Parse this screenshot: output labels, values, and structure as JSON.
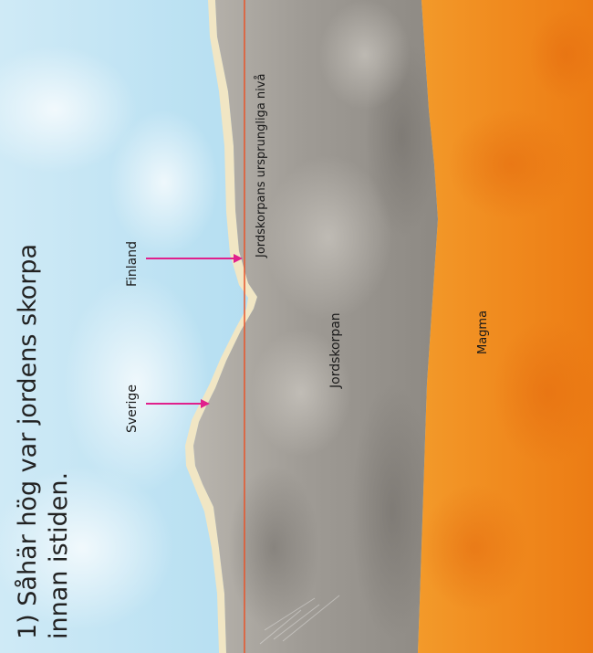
{
  "title_line1": "1) Såhär hög var jordens skorpa",
  "title_line2": "innan istiden.",
  "labels": {
    "finland": "Finland",
    "sverige": "Sverige",
    "original_level": "Jordskorpans ursprungliga nivå",
    "crust": "Jordskorpan",
    "magma": "Magma"
  },
  "colors": {
    "sky": "#a8d8ef",
    "crust": "#9d9a95",
    "magma": "#f08a1e",
    "arrow": "#e0208c",
    "level_line": "#e8552a",
    "sand": "#f1e6c4"
  }
}
